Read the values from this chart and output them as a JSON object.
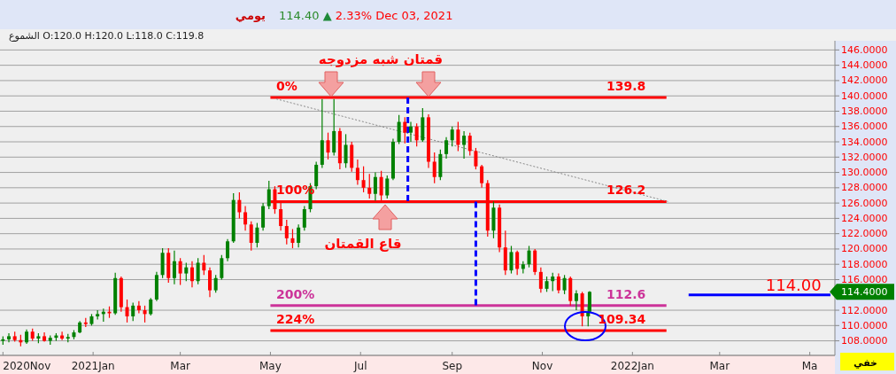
{
  "chart_data": {
    "type": "candlestick",
    "title": "يومي",
    "xlim": [
      "2020-10-30",
      "2022-05-18"
    ],
    "ylim": [
      106.1,
      147.2
    ],
    "xticks": [
      {
        "value": "2020-11-01",
        "label": "2020Nov"
      },
      {
        "value": "2021-01-01",
        "label": "2021Jan"
      },
      {
        "value": "2021-03-01",
        "label": "Mar"
      },
      {
        "value": "2021-05-01",
        "label": "May"
      },
      {
        "value": "2021-07-01",
        "label": "Jul"
      },
      {
        "value": "2021-09-01",
        "label": "Sep"
      },
      {
        "value": "2021-11-01",
        "label": "Nov"
      },
      {
        "value": "2022-01-01",
        "label": "2022Jan"
      },
      {
        "value": "2022-03-01",
        "label": "Mar"
      },
      {
        "value": "2022-05-01",
        "label": "Ma"
      }
    ],
    "yticks": [
      {
        "value": 108,
        "label": "108.0000"
      },
      {
        "value": 110,
        "label": "110.0000"
      },
      {
        "value": 112,
        "label": "112.0000"
      },
      {
        "value": 116,
        "label": "116.0000"
      },
      {
        "value": 118,
        "label": "118.0000"
      },
      {
        "value": 120,
        "label": "120.0000"
      },
      {
        "value": 122,
        "label": "122.0000"
      },
      {
        "value": 124,
        "label": "124.0000"
      },
      {
        "value": 126,
        "label": "126.0000"
      },
      {
        "value": 128,
        "label": "128.0000"
      },
      {
        "value": 130,
        "label": "130.0000"
      },
      {
        "value": 132,
        "label": "132.0000"
      },
      {
        "value": 134,
        "label": "134.0000"
      },
      {
        "value": 136,
        "label": "136.0000"
      },
      {
        "value": 138,
        "label": "138.0000"
      },
      {
        "value": 140,
        "label": "140.0000"
      },
      {
        "value": 142,
        "label": "142.0000"
      },
      {
        "value": 144,
        "label": "144.0000"
      },
      {
        "value": 146,
        "label": "146.0000"
      }
    ],
    "grid": "y",
    "x": [
      "2020-11-01",
      "2020-11-05",
      "2020-11-09",
      "2020-11-13",
      "2020-11-17",
      "2020-11-21",
      "2020-11-25",
      "2020-11-29",
      "2020-12-03",
      "2020-12-07",
      "2020-12-11",
      "2020-12-15",
      "2020-12-19",
      "2020-12-23",
      "2020-12-27",
      "2020-12-31",
      "2021-01-04",
      "2021-01-08",
      "2021-01-12",
      "2021-01-16",
      "2021-01-20",
      "2021-01-24",
      "2021-01-28",
      "2021-02-01",
      "2021-02-05",
      "2021-02-09",
      "2021-02-13",
      "2021-02-17",
      "2021-02-21",
      "2021-02-25",
      "2021-03-01",
      "2021-03-05",
      "2021-03-09",
      "2021-03-13",
      "2021-03-17",
      "2021-03-21",
      "2021-03-25",
      "2021-03-29",
      "2021-04-02",
      "2021-04-06",
      "2021-04-10",
      "2021-04-14",
      "2021-04-18",
      "2021-04-22",
      "2021-04-26",
      "2021-04-30",
      "2021-05-04",
      "2021-05-08",
      "2021-05-12",
      "2021-05-16",
      "2021-05-20",
      "2021-05-24",
      "2021-05-28",
      "2021-06-01",
      "2021-06-05",
      "2021-06-09",
      "2021-06-13",
      "2021-06-17",
      "2021-06-21",
      "2021-06-25",
      "2021-06-29",
      "2021-07-03",
      "2021-07-07",
      "2021-07-11",
      "2021-07-15",
      "2021-07-19",
      "2021-07-23",
      "2021-07-27",
      "2021-07-31",
      "2021-08-04",
      "2021-08-08",
      "2021-08-12",
      "2021-08-16",
      "2021-08-20",
      "2021-08-24",
      "2021-08-28",
      "2021-09-01",
      "2021-09-05",
      "2021-09-09",
      "2021-09-13",
      "2021-09-17",
      "2021-09-21",
      "2021-09-25",
      "2021-09-29",
      "2021-10-03",
      "2021-10-07",
      "2021-10-11",
      "2021-10-15",
      "2021-10-19",
      "2021-10-23",
      "2021-10-27",
      "2021-10-31",
      "2021-11-04",
      "2021-11-08",
      "2021-11-12",
      "2021-11-16",
      "2021-11-20",
      "2021-11-24",
      "2021-11-28",
      "2021-12-02",
      "2021-12-03"
    ],
    "ohlc": [
      [
        108,
        108.6,
        107.5,
        108.2
      ],
      [
        108.2,
        109,
        107.8,
        108.6
      ],
      [
        108.6,
        109.2,
        107.9,
        108.1
      ],
      [
        108.1,
        108.8,
        107.3,
        107.8
      ],
      [
        107.8,
        109.5,
        107.6,
        109.2
      ],
      [
        109.2,
        109.6,
        108,
        108.3
      ],
      [
        108.3,
        109,
        107.7,
        108.6
      ],
      [
        108.6,
        109.1,
        107.9,
        108
      ],
      [
        108,
        108.7,
        107.5,
        108.4
      ],
      [
        108.4,
        109,
        108,
        108.7
      ],
      [
        108.7,
        109.2,
        108.1,
        108.3
      ],
      [
        108.3,
        108.9,
        107.8,
        108.5
      ],
      [
        108.5,
        109.4,
        108.2,
        109.1
      ],
      [
        109.1,
        110.6,
        109,
        110.4
      ],
      [
        110.4,
        111,
        109.8,
        110.2
      ],
      [
        110.2,
        111.5,
        110,
        111.2
      ],
      [
        111.2,
        112,
        110.8,
        111.5
      ],
      [
        111.5,
        112.2,
        110.5,
        111.8
      ],
      [
        111.8,
        112.5,
        111,
        111.6
      ],
      [
        111.6,
        116.9,
        111.4,
        116.2
      ],
      [
        116.2,
        116.4,
        111.8,
        112.4
      ],
      [
        112.4,
        113.4,
        110.4,
        111.2
      ],
      [
        111.2,
        113,
        110.6,
        112.6
      ],
      [
        112.6,
        113.2,
        111.6,
        112
      ],
      [
        112,
        112.6,
        110.4,
        111.5
      ],
      [
        111.5,
        113.6,
        111.3,
        113.4
      ],
      [
        113.4,
        117,
        113.2,
        116.6
      ],
      [
        116.6,
        120.1,
        116.2,
        119.5
      ],
      [
        119.5,
        120.1,
        115.6,
        116.2
      ],
      [
        116.2,
        119.8,
        115.4,
        118.4
      ],
      [
        118.4,
        118.8,
        115.3,
        116.8
      ],
      [
        116.8,
        118.2,
        115.8,
        117.6
      ],
      [
        117.6,
        118.4,
        115,
        115.8
      ],
      [
        115.8,
        118.8,
        115.4,
        118.2
      ],
      [
        118.2,
        119.2,
        116.6,
        117.2
      ],
      [
        117.2,
        117.6,
        113.7,
        114.6
      ],
      [
        114.6,
        116.6,
        114.3,
        116.2
      ],
      [
        116.2,
        119.2,
        116,
        118.8
      ],
      [
        118.8,
        121.3,
        118.4,
        121
      ],
      [
        121,
        127.3,
        120.8,
        126.4
      ],
      [
        126.4,
        127.4,
        124,
        124.8
      ],
      [
        124.8,
        125.6,
        122.4,
        123.2
      ],
      [
        123.2,
        123.6,
        119.8,
        120.8
      ],
      [
        120.8,
        123.4,
        120.2,
        122.8
      ],
      [
        122.8,
        126,
        122.4,
        125.6
      ],
      [
        125.6,
        128.9,
        125.2,
        127.8
      ],
      [
        127.8,
        128.2,
        124.6,
        125.2
      ],
      [
        125.2,
        126.2,
        122.4,
        123
      ],
      [
        123,
        123.8,
        120.6,
        121.4
      ],
      [
        121.4,
        122.6,
        120.1,
        120.8
      ],
      [
        120.8,
        123.2,
        120.2,
        122.8
      ],
      [
        122.8,
        125.6,
        122.4,
        125.2
      ],
      [
        125.2,
        128.6,
        124.8,
        128.2
      ],
      [
        128.2,
        131.4,
        127.8,
        131
      ],
      [
        131,
        139.6,
        130.6,
        134.2
      ],
      [
        134.2,
        135.2,
        131.7,
        132.6
      ],
      [
        132.6,
        139.6,
        132.2,
        135.4
      ],
      [
        135.4,
        135.8,
        130.4,
        131.2
      ],
      [
        131.2,
        135,
        130.6,
        133.6
      ],
      [
        133.6,
        134,
        130.1,
        130.6
      ],
      [
        130.6,
        131.7,
        128.4,
        129
      ],
      [
        129,
        130.8,
        127.4,
        128
      ],
      [
        128,
        129.8,
        126.6,
        127.2
      ],
      [
        127.2,
        130,
        126.3,
        129.4
      ],
      [
        129.4,
        130.2,
        126.3,
        127
      ],
      [
        127,
        129.6,
        126.6,
        129.2
      ],
      [
        129.2,
        134.4,
        129,
        134
      ],
      [
        134,
        137.5,
        133.7,
        136.6
      ],
      [
        136.6,
        137.2,
        133.8,
        135.2
      ],
      [
        135.2,
        136.6,
        134,
        136
      ],
      [
        136,
        136.4,
        133.4,
        134.2
      ],
      [
        134.2,
        138.4,
        134,
        137.2
      ],
      [
        137.2,
        137.6,
        130.6,
        131.4
      ],
      [
        131.4,
        132.6,
        128.6,
        129.4
      ],
      [
        129.4,
        133,
        129,
        132.4
      ],
      [
        132.4,
        134.6,
        131.8,
        134.2
      ],
      [
        134.2,
        136,
        133.4,
        135.6
      ],
      [
        135.6,
        136.6,
        132.8,
        133.6
      ],
      [
        133.6,
        135.4,
        131.8,
        134.8
      ],
      [
        134.8,
        135.2,
        132.2,
        132.8
      ],
      [
        132.8,
        133.2,
        130.4,
        130.8
      ],
      [
        130.8,
        131,
        128,
        128.6
      ],
      [
        128.6,
        129,
        121.6,
        122.4
      ],
      [
        122.4,
        126.2,
        121.4,
        125.4
      ],
      [
        125.4,
        125.8,
        119.6,
        120.2
      ],
      [
        120.2,
        122.4,
        116.6,
        117.2
      ],
      [
        117.2,
        120.4,
        116.8,
        119.6
      ],
      [
        119.6,
        119.8,
        116.6,
        117.4
      ],
      [
        117.4,
        118.4,
        116.8,
        118
      ],
      [
        118,
        120.4,
        117.6,
        119.8
      ],
      [
        119.8,
        120,
        116.6,
        117
      ],
      [
        117,
        117.6,
        114.3,
        114.8
      ],
      [
        114.8,
        116.4,
        114.4,
        115.8
      ],
      [
        115.8,
        116.9,
        114.5,
        116.4
      ],
      [
        116.4,
        116.8,
        114.2,
        114.6
      ],
      [
        114.6,
        116.6,
        114.1,
        116.2
      ],
      [
        116.2,
        116.4,
        112.6,
        113.2
      ],
      [
        113.2,
        114.6,
        112,
        114.2
      ],
      [
        114.2,
        114.4,
        109.9,
        111.2
      ],
      [
        111.2,
        112.5,
        109.9,
        111.7
      ],
      [
        111.8,
        114.5,
        111.7,
        114.4
      ]
    ],
    "series": [
      {
        "type": "line",
        "color": "#ff0000",
        "x": [
          "2021-05-01",
          "2022-01-24"
        ],
        "values": [
          139.8,
          139.8
        ]
      },
      {
        "type": "line",
        "color": "#ff0000",
        "x": [
          "2021-05-01",
          "2022-01-24"
        ],
        "values": [
          126.2,
          126.2
        ]
      },
      {
        "type": "line",
        "color": "#cc3399",
        "x": [
          "2021-05-01",
          "2022-01-24"
        ],
        "values": [
          112.6,
          112.6
        ]
      },
      {
        "type": "line",
        "color": "#ff0000",
        "x": [
          "2021-05-01",
          "2022-01-24"
        ],
        "values": [
          109.34,
          109.34
        ]
      },
      {
        "type": "line",
        "color": "#888888",
        "line_style": "dotted",
        "x": [
          "2021-05-05",
          "2022-01-25"
        ],
        "values": [
          139.6,
          126.2
        ]
      },
      {
        "type": "line",
        "color": "#0000ff",
        "line_style": "dashed",
        "x": [
          "2021-08-02",
          "2021-08-02"
        ],
        "values": [
          139.8,
          126.2
        ]
      },
      {
        "type": "line",
        "color": "#0000ff",
        "line_style": "dashed",
        "x": [
          "2021-09-17",
          "2021-09-17"
        ],
        "values": [
          126.2,
          112.6
        ]
      },
      {
        "type": "line",
        "color": "#0000ff",
        "x": [
          "2022-02-08",
          "2022-05-15"
        ],
        "values": [
          114,
          114
        ]
      }
    ],
    "annotations": [
      "114.40",
      "▲",
      "2.33%",
      "Dec 03, 2021",
      "الشموع  O:120.0  H:120.0  L:118.0  C:119.8",
      "114.4000",
      "خفي",
      "قمتان شبه مزدوجه",
      "قاع القمتان",
      {
        "text": "0%",
        "x": "2021-05-05",
        "y": 140.3
      },
      {
        "text": "139.8",
        "x": "2022-01-10",
        "y": 140.3
      },
      {
        "text": "100%",
        "x": "2021-05-05",
        "y": 126.7
      },
      {
        "text": "126.2",
        "x": "2022-01-10",
        "y": 126.7
      },
      {
        "text": "200%",
        "x": "2021-05-05",
        "y": 113.1
      },
      {
        "text": "112.6",
        "x": "2022-01-10",
        "y": 113.1
      },
      {
        "text": "224%",
        "x": "2021-05-05",
        "y": 109.84
      },
      {
        "text": "109.34",
        "x": "2022-01-10",
        "y": 109.84
      },
      {
        "text": "114.00",
        "x": "2022-04-20",
        "y": 114.6
      }
    ]
  }
}
